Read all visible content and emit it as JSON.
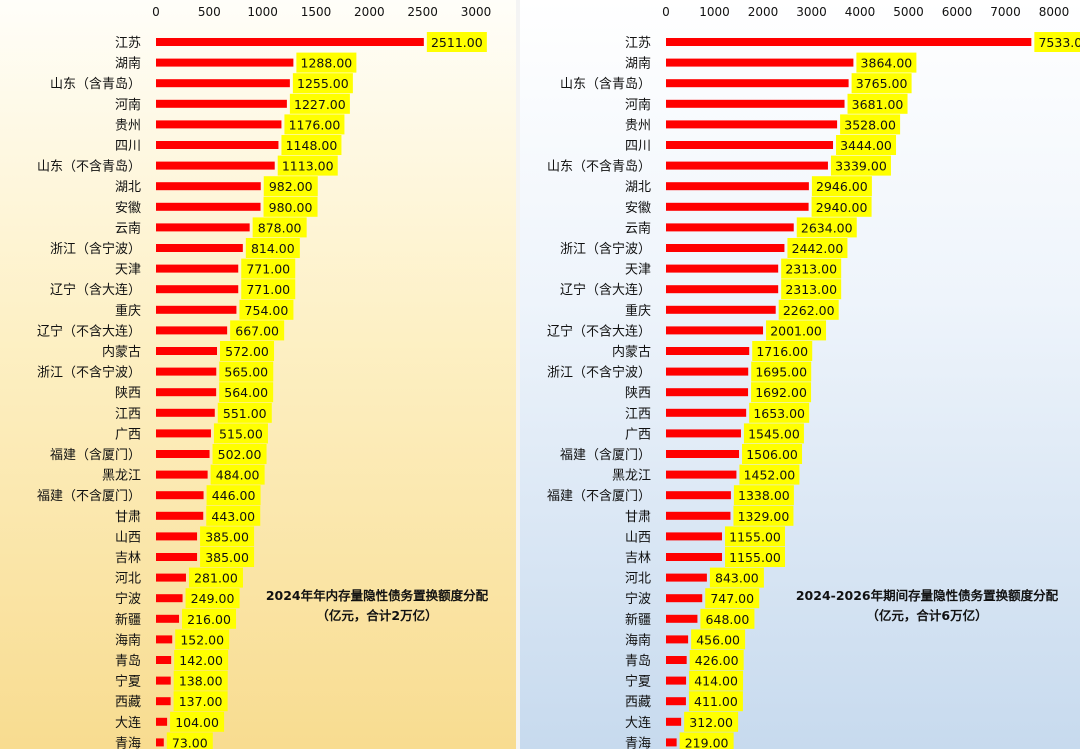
{
  "colors": {
    "bar": "#ff0000",
    "label_bg": "#ffff00",
    "left_bg_top": "#fffef9",
    "left_bg_bottom": "#f8dc90",
    "right_bg_top": "#ffffff",
    "right_bg_bottom": "#c7daee"
  },
  "chart_data": [
    {
      "type": "bar",
      "orientation": "horizontal",
      "title": "2024年年内存量隐性债务置换额度分配",
      "subtitle": "（亿元，合计2万亿）",
      "x_ticks": [
        "0",
        "500",
        "1000",
        "1500",
        "2000",
        "2500",
        "3000"
      ],
      "xlim": [
        0,
        3000
      ],
      "categories": [
        "江苏",
        "湖南",
        "山东（含青岛）",
        "河南",
        "贵州",
        "四川",
        "山东（不含青岛）",
        "湖北",
        "安徽",
        "云南",
        "浙江（含宁波）",
        "天津",
        "辽宁（含大连）",
        "重庆",
        "辽宁（不含大连）",
        "内蒙古",
        "浙江（不含宁波）",
        "陕西",
        "江西",
        "广西",
        "福建（含厦门）",
        "黑龙江",
        "福建（不含厦门）",
        "甘肃",
        "山西",
        "吉林",
        "河北",
        "宁波",
        "新疆",
        "海南",
        "青岛",
        "宁夏",
        "西藏",
        "大连",
        "青海"
      ],
      "values": [
        2511,
        1288,
        1255,
        1227,
        1176,
        1148,
        1113,
        982,
        980,
        878,
        814,
        771,
        771,
        754,
        667,
        572,
        565,
        564,
        551,
        515,
        502,
        484,
        446,
        443,
        385,
        385,
        281,
        249,
        216,
        152,
        142,
        138,
        137,
        104,
        73
      ],
      "data_labels": [
        "2511.00",
        "1288.00",
        "1255.00",
        "1227.00",
        "1176.00",
        "1148.00",
        "1113.00",
        "982.00",
        "980.00",
        "878.00",
        "814.00",
        "771.00",
        "771.00",
        "754.00",
        "667.00",
        "572.00",
        "565.00",
        "564.00",
        "551.00",
        "515.00",
        "502.00",
        "484.00",
        "446.00",
        "443.00",
        "385.00",
        "385.00",
        "281.00",
        "249.00",
        "216.00",
        "152.00",
        "142.00",
        "138.00",
        "137.00",
        "104.00",
        "73.00"
      ],
      "grid": false,
      "legend": "none"
    },
    {
      "type": "bar",
      "orientation": "horizontal",
      "title": "2024-2026年期间存量隐性债务置换额度分配",
      "subtitle": "（亿元，合计6万亿）",
      "x_ticks": [
        "0",
        "1000",
        "2000",
        "3000",
        "4000",
        "5000",
        "6000",
        "7000",
        "8000"
      ],
      "xlim": [
        0,
        8000
      ],
      "categories": [
        "江苏",
        "湖南",
        "山东（含青岛）",
        "河南",
        "贵州",
        "四川",
        "山东（不含青岛）",
        "湖北",
        "安徽",
        "云南",
        "浙江（含宁波）",
        "天津",
        "辽宁（含大连）",
        "重庆",
        "辽宁（不含大连）",
        "内蒙古",
        "浙江（不含宁波）",
        "陕西",
        "江西",
        "广西",
        "福建（含厦门）",
        "黑龙江",
        "福建（不含厦门）",
        "甘肃",
        "山西",
        "吉林",
        "河北",
        "宁波",
        "新疆",
        "海南",
        "青岛",
        "宁夏",
        "西藏",
        "大连",
        "青海"
      ],
      "values": [
        7533,
        3864,
        3765,
        3681,
        3528,
        3444,
        3339,
        2946,
        2940,
        2634,
        2442,
        2313,
        2313,
        2262,
        2001,
        1716,
        1695,
        1692,
        1653,
        1545,
        1506,
        1452,
        1338,
        1329,
        1155,
        1155,
        843,
        747,
        648,
        456,
        426,
        414,
        411,
        312,
        219
      ],
      "data_labels": [
        "7533.00",
        "3864.00",
        "3765.00",
        "3681.00",
        "3528.00",
        "3444.00",
        "3339.00",
        "2946.00",
        "2940.00",
        "2634.00",
        "2442.00",
        "2313.00",
        "2313.00",
        "2262.00",
        "2001.00",
        "1716.00",
        "1695.00",
        "1692.00",
        "1653.00",
        "1545.00",
        "1506.00",
        "1452.00",
        "1338.00",
        "1329.00",
        "1155.00",
        "1155.00",
        "843.00",
        "747.00",
        "648.00",
        "456.00",
        "426.00",
        "414.00",
        "411.00",
        "312.00",
        "219.00"
      ],
      "grid": false,
      "legend": "none"
    }
  ]
}
